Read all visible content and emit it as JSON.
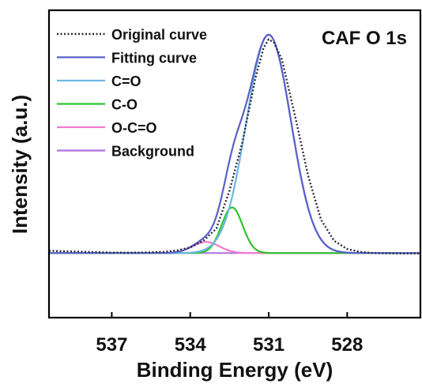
{
  "chart_data": {
    "type": "line",
    "title": "CAF O 1s",
    "xlabel": "Binding Energy (eV)",
    "ylabel": "Intensity (a.u.)",
    "x_reversed": true,
    "xlim": [
      539.4,
      525.2
    ],
    "ylim": [
      -0.27,
      1.11
    ],
    "xticks": [
      537,
      534,
      531,
      528
    ],
    "xtick_labels": [
      "537",
      "534",
      "531",
      "528"
    ],
    "yticks_shown": false,
    "grid": false,
    "legend_position": "top-left",
    "legend": [
      {
        "label": "Original curve",
        "series": "original",
        "color": "#2b2b3a",
        "style": "dotted"
      },
      {
        "label": "Fitting curve",
        "series": "fitting",
        "color": "#5b5fc7",
        "style": "solid"
      },
      {
        "label": "C=O",
        "series": "c_eq_o",
        "color": "#6cb8e6",
        "style": "solid"
      },
      {
        "label": "C-O",
        "series": "c_o",
        "color": "#2ec42e",
        "style": "solid"
      },
      {
        "label": "O-C=O",
        "series": "o_c_eq_o",
        "color": "#f07ad0",
        "style": "solid"
      },
      {
        "label": "Background",
        "series": "background",
        "color": "#b070e0",
        "style": "solid"
      }
    ],
    "baseline": 0.02,
    "peaks": [
      {
        "id": "c_eq_o",
        "center": 531.0,
        "height": 0.98,
        "fwhm": 2.0
      },
      {
        "id": "c_o",
        "center": 532.4,
        "height": 0.205,
        "fwhm": 0.95
      },
      {
        "id": "o_c_eq_o",
        "center": 533.4,
        "height": 0.05,
        "fwhm": 1.2
      }
    ],
    "original_curve": {
      "x": [
        539.4,
        538,
        537,
        536,
        535,
        534.5,
        534,
        533.5,
        533,
        532.5,
        532,
        531.5,
        531.2,
        531.0,
        530.8,
        530.5,
        530,
        529.5,
        529,
        528.5,
        528,
        527.5,
        527,
        526,
        525.2
      ],
      "y": [
        0.03,
        0.025,
        0.022,
        0.022,
        0.025,
        0.032,
        0.045,
        0.075,
        0.13,
        0.3,
        0.52,
        0.81,
        0.94,
        0.98,
        0.965,
        0.89,
        0.64,
        0.37,
        0.17,
        0.075,
        0.038,
        0.025,
        0.02,
        0.018,
        0.018
      ]
    }
  }
}
